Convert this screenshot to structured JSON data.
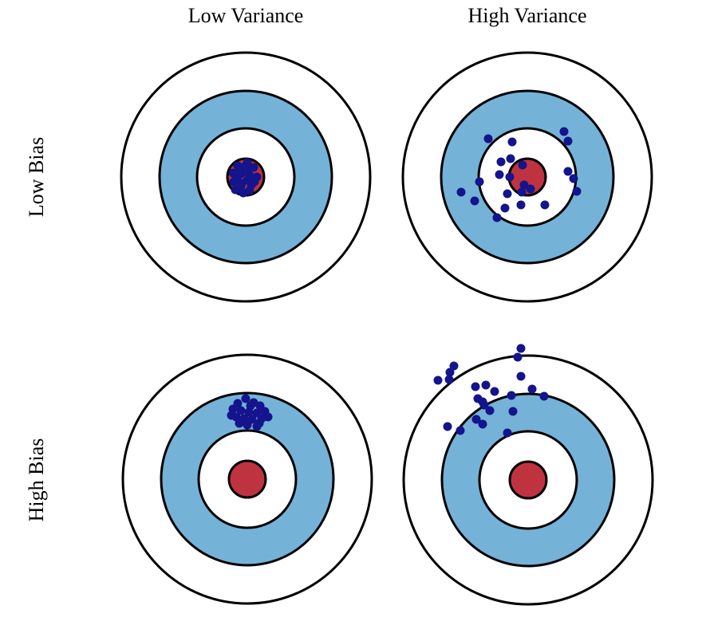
{
  "figure": {
    "description": "Bias and variance illustrated with bullseye targets",
    "grid": "2x2 targets; columns = variance level, rows = bias level"
  },
  "columns": [
    {
      "label": "Low Variance"
    },
    {
      "label": "High Variance"
    }
  ],
  "rows": [
    {
      "label": "Low Bias"
    },
    {
      "label": "High Bias"
    }
  ],
  "colors": {
    "background": "#ffffff",
    "stroke_black": "#000000",
    "ring_white": "#ffffff",
    "ring_blue": "#75b2d8",
    "bullseye_red": "#bf3341",
    "dot_navy": "#14148c"
  },
  "target": {
    "ring_radii": [
      156,
      108,
      61,
      23
    ],
    "ring_fills": [
      "#ffffff",
      "#75b2d8",
      "#ffffff",
      "#bf3341"
    ],
    "ring_names": [
      "outer-ring",
      "blue-ring",
      "inner-white-ring",
      "bullseye"
    ],
    "stroke_width": 3,
    "dot_radius": 5.5
  },
  "panels": [
    {
      "id": "low-bias-low-variance",
      "row": "Low Bias",
      "column": "Low Variance",
      "dots": [
        [
          -10,
          -14
        ],
        [
          2,
          -18
        ],
        [
          10,
          -12
        ],
        [
          -16,
          -5
        ],
        [
          -6,
          -4
        ],
        [
          5,
          -2
        ],
        [
          14,
          0
        ],
        [
          -15,
          6
        ],
        [
          -5,
          8
        ],
        [
          7,
          10
        ],
        [
          -13,
          16
        ],
        [
          -3,
          20
        ],
        [
          5,
          17
        ],
        [
          -8,
          -9
        ],
        [
          1,
          -7
        ],
        [
          -11,
          1
        ],
        [
          2,
          4
        ],
        [
          -6,
          12
        ],
        [
          11,
          6
        ],
        [
          -1,
          -13
        ]
      ]
    },
    {
      "id": "low-bias-high-variance",
      "row": "Low Bias",
      "column": "High Variance",
      "dots": [
        [
          -49,
          -48
        ],
        [
          -19,
          -44
        ],
        [
          46,
          -57
        ],
        [
          51,
          -45
        ],
        [
          -33,
          -19
        ],
        [
          -21,
          -23
        ],
        [
          -6,
          -15
        ],
        [
          -35,
          -3
        ],
        [
          -22,
          0
        ],
        [
          51,
          -7
        ],
        [
          58,
          2
        ],
        [
          -83,
          19
        ],
        [
          -66,
          30
        ],
        [
          -60,
          6
        ],
        [
          -25,
          21
        ],
        [
          -4,
          10
        ],
        [
          4,
          15
        ],
        [
          -7,
          19
        ],
        [
          -8,
          35
        ],
        [
          22,
          35
        ],
        [
          -28,
          39
        ],
        [
          -38,
          51
        ],
        [
          62,
          18
        ]
      ]
    },
    {
      "id": "high-bias-low-variance",
      "row": "High Bias",
      "column": "Low Variance",
      "dots": [
        [
          -12,
          -95
        ],
        [
          -2,
          -101
        ],
        [
          8,
          -96
        ],
        [
          16,
          -92
        ],
        [
          -18,
          -88
        ],
        [
          -8,
          -86
        ],
        [
          2,
          -84
        ],
        [
          12,
          -83
        ],
        [
          22,
          -85
        ],
        [
          -14,
          -78
        ],
        [
          -4,
          -76
        ],
        [
          6,
          -75
        ],
        [
          18,
          -76
        ],
        [
          -10,
          -70
        ],
        [
          0,
          -68
        ],
        [
          12,
          -66
        ],
        [
          26,
          -78
        ],
        [
          -20,
          -80
        ],
        [
          4,
          -92
        ],
        [
          15,
          -70
        ]
      ]
    },
    {
      "id": "high-bias-high-variance",
      "row": "High Bias",
      "column": "High Variance",
      "dots": [
        [
          -9,
          -165
        ],
        [
          -13,
          -154
        ],
        [
          -93,
          -143
        ],
        [
          -98,
          -135
        ],
        [
          -113,
          -125
        ],
        [
          -99,
          -126
        ],
        [
          -66,
          -117
        ],
        [
          -53,
          -119
        ],
        [
          -42,
          -111
        ],
        [
          -9,
          -130
        ],
        [
          5,
          -114
        ],
        [
          20,
          -105
        ],
        [
          -21,
          -106
        ],
        [
          -63,
          -102
        ],
        [
          -57,
          -98
        ],
        [
          -55,
          -94
        ],
        [
          -48,
          -87
        ],
        [
          -19,
          -86
        ],
        [
          -65,
          -76
        ],
        [
          -57,
          -70
        ],
        [
          -101,
          -67
        ],
        [
          -85,
          -62
        ],
        [
          -26,
          -59
        ]
      ]
    }
  ]
}
